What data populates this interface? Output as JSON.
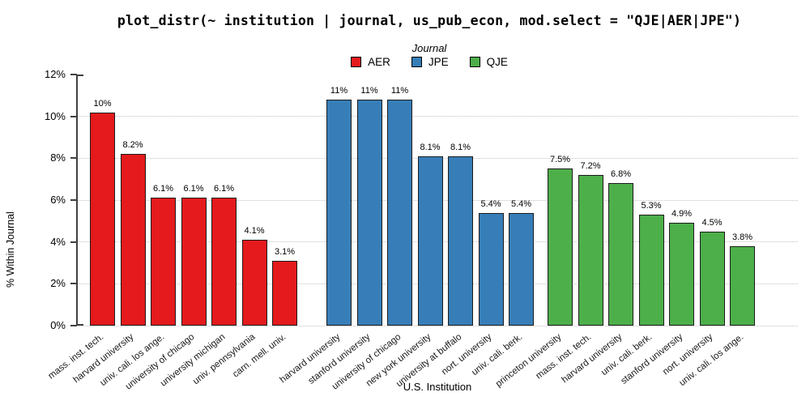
{
  "title": "plot_distr(~ institution | journal, us_pub_econ, mod.select = \"QJE|AER|JPE\")",
  "legend": {
    "title": "Journal",
    "items": [
      {
        "label": "AER",
        "color": "#e41a1c"
      },
      {
        "label": "JPE",
        "color": "#377eb8"
      },
      {
        "label": "QJE",
        "color": "#4daf4a"
      }
    ]
  },
  "y_axis": {
    "label": "% Within Journal",
    "ticks": [
      "0%",
      "2%",
      "4%",
      "6%",
      "8%",
      "10%",
      "12%"
    ],
    "max": 12
  },
  "x_axis": {
    "label": "U.S. Institution"
  },
  "chart_data": {
    "type": "bar",
    "title": "plot_distr(~ institution | journal, us_pub_econ, mod.select = \"QJE|AER|JPE\")",
    "xlabel": "U.S. Institution",
    "ylabel": "% Within Journal",
    "ylim": [
      0,
      12
    ],
    "grid": "horizontal-dotted",
    "legend_position": "top-center",
    "series": [
      {
        "name": "AER",
        "color": "#e41a1c",
        "categories": [
          "mass. inst. tech.",
          "harvard university",
          "univ. cali. los ange.",
          "university of chicago",
          "university michigan",
          "univ. pennsylvania",
          "carn. mell. univ."
        ],
        "values": [
          10.2,
          8.2,
          6.1,
          6.1,
          6.1,
          4.1,
          3.1
        ],
        "bar_labels": [
          "10%",
          "8.2%",
          "6.1%",
          "6.1%",
          "6.1%",
          "4.1%",
          "3.1%"
        ]
      },
      {
        "name": "JPE",
        "color": "#377eb8",
        "categories": [
          "harvard university",
          "stanford university",
          "university of chicago",
          "new york university",
          "university at buffalo",
          "nort. university",
          "univ. cali. berk."
        ],
        "values": [
          10.8,
          10.8,
          10.8,
          8.1,
          8.1,
          5.4,
          5.4
        ],
        "bar_labels": [
          "11%",
          "11%",
          "11%",
          "8.1%",
          "8.1%",
          "5.4%",
          "5.4%"
        ]
      },
      {
        "name": "QJE",
        "color": "#4daf4a",
        "categories": [
          "princeton university",
          "mass. inst. tech.",
          "harvard university",
          "univ. cali. berk.",
          "stanford university",
          "nort. university",
          "univ. cali. los ange."
        ],
        "values": [
          7.5,
          7.2,
          6.8,
          5.3,
          4.9,
          4.5,
          3.8
        ],
        "bar_labels": [
          "7.5%",
          "7.2%",
          "6.8%",
          "5.3%",
          "4.9%",
          "4.5%",
          "3.8%"
        ]
      }
    ]
  }
}
